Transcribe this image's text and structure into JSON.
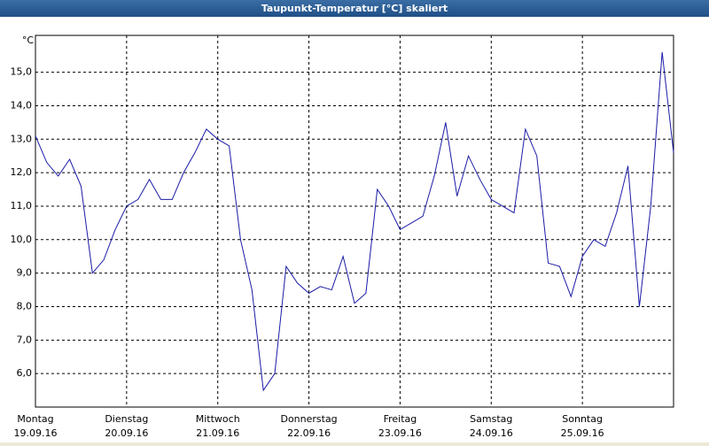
{
  "chart_data": {
    "type": "line",
    "title": "Taupunkt-Temperatur [°C] skaliert",
    "y_label": "°C",
    "categories": [
      "Montag",
      null,
      null,
      null,
      null,
      null,
      null,
      null,
      "Dienstag",
      null,
      null,
      null,
      null,
      null,
      null,
      null,
      "Mittwoch",
      null,
      null,
      null,
      null,
      null,
      null,
      null,
      "Donnerstag",
      null,
      null,
      null,
      null,
      null,
      null,
      null,
      "Freitag",
      null,
      null,
      null,
      null,
      null,
      null,
      null,
      "Samstag",
      null,
      null,
      null,
      null,
      null,
      null,
      null,
      "Sonntag",
      null,
      null,
      null,
      null,
      null,
      null,
      null,
      null
    ],
    "dates": [
      "19.09.16",
      null,
      null,
      null,
      null,
      null,
      null,
      null,
      "20.09.16",
      null,
      null,
      null,
      null,
      null,
      null,
      null,
      "21.09.16",
      null,
      null,
      null,
      null,
      null,
      null,
      null,
      "22.09.16",
      null,
      null,
      null,
      null,
      null,
      null,
      null,
      "23.09.16",
      null,
      null,
      null,
      null,
      null,
      null,
      null,
      "24.09.16",
      null,
      null,
      null,
      null,
      null,
      null,
      null,
      "25.09.16",
      null,
      null,
      null,
      null,
      null,
      null,
      null,
      null
    ],
    "values": [
      13.1,
      12.3,
      11.9,
      12.4,
      11.6,
      9.0,
      9.4,
      10.3,
      11.0,
      11.2,
      11.8,
      11.2,
      11.2,
      12.0,
      12.6,
      13.3,
      13.0,
      12.8,
      10.0,
      8.5,
      5.5,
      6.0,
      9.2,
      8.7,
      8.4,
      8.6,
      8.5,
      9.5,
      8.1,
      8.4,
      11.5,
      11.0,
      10.3,
      10.5,
      10.7,
      11.9,
      13.5,
      11.3,
      12.5,
      11.8,
      11.2,
      11.0,
      10.8,
      13.3,
      12.5,
      9.3,
      9.2,
      8.3,
      9.5,
      10.0,
      9.8,
      10.8,
      12.2,
      8.0,
      11.0,
      15.6,
      12.6
    ],
    "color": "#1a1aa6",
    "ylim": [
      5,
      16.1
    ],
    "yticks": [
      {
        "value": 6,
        "label": "6,0"
      },
      {
        "value": 7,
        "label": "7,0"
      },
      {
        "value": 8,
        "label": "8,0"
      },
      {
        "value": 9,
        "label": "9,0"
      },
      {
        "value": 10,
        "label": "10,0"
      },
      {
        "value": 11,
        "label": "11,0"
      },
      {
        "value": 12,
        "label": "12,0"
      },
      {
        "value": 13,
        "label": "13,0"
      },
      {
        "value": 14,
        "label": "14,0"
      },
      {
        "value": 15,
        "label": "15,0"
      }
    ],
    "grid": true
  }
}
